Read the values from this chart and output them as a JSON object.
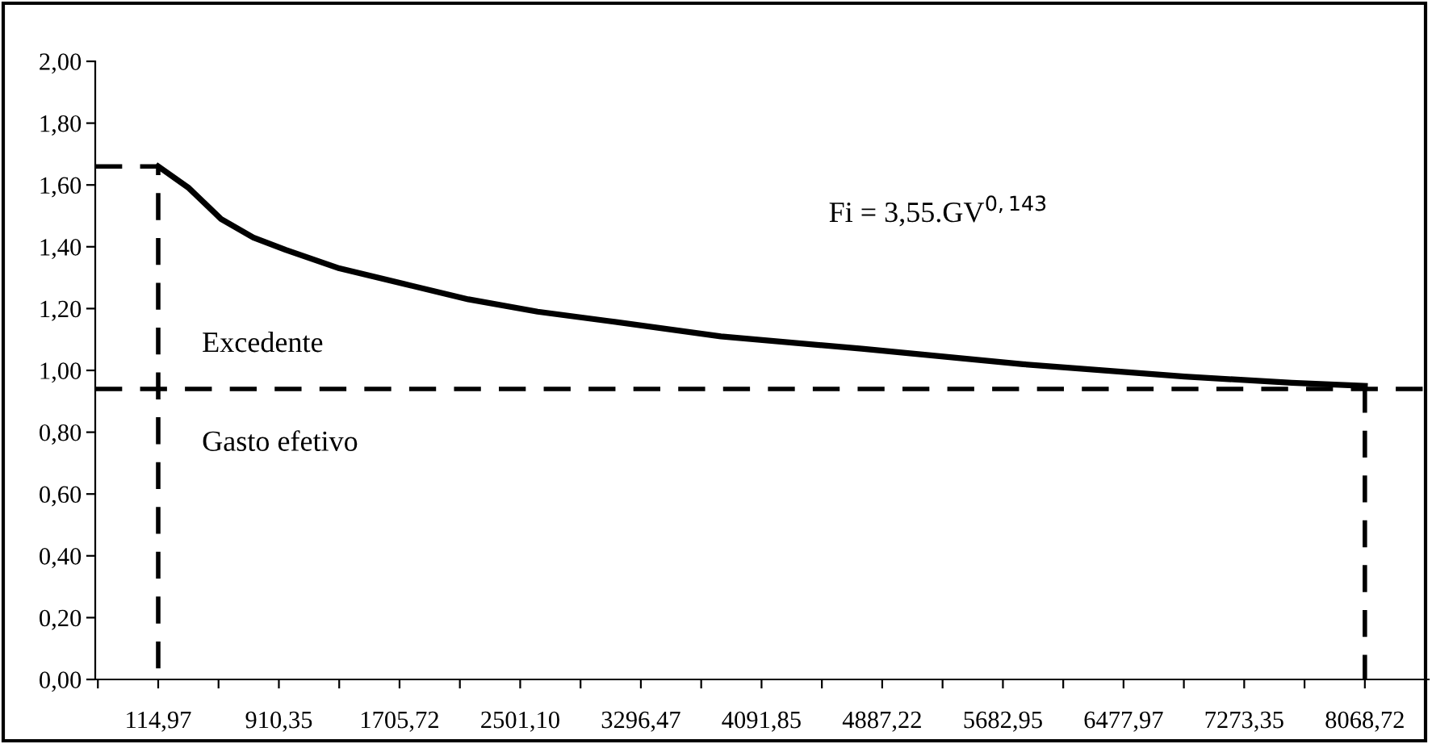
{
  "chart_data": {
    "type": "line",
    "annotations": [
      "Fi = 3,55.GV$^{0,143}$",
      "Excedente",
      "Gasto efetivo"
    ],
    "series": [
      {
        "color": "#000000",
        "line_style": "solid",
        "x": [
          114.97,
          317,
          529,
          742,
          955,
          1309,
          1734,
          2159,
          2616,
          3080,
          3824,
          4753,
          5816,
          6879,
          7588,
          8068.72
        ],
        "values": [
          1.66,
          1.59,
          1.49,
          1.43,
          1.39,
          1.33,
          1.28,
          1.23,
          1.19,
          1.16,
          1.11,
          1.07,
          1.02,
          0.98,
          0.96,
          0.95
        ]
      },
      {
        "color": "#000000",
        "line_style": "dashed",
        "x": [
          -300,
          114.97,
          114.97
        ],
        "values": [
          1.66,
          1.66,
          0
        ]
      },
      {
        "color": "#000000",
        "line_style": "dashed",
        "x": [
          8068.72,
          8068.72
        ],
        "values": [
          0.95,
          0
        ]
      }
    ],
    "ref_lines": [
      {
        "axis": "y",
        "value": 0.94,
        "color": "#000000",
        "line_style": "dashed"
      }
    ],
    "xlim": [
      -300,
      8490
    ],
    "xticks": [
      {
        "value": -282.72,
        "label": null
      },
      {
        "value": 114.97,
        "label": "114,97"
      },
      {
        "value": 512.66,
        "label": null
      },
      {
        "value": 910.35,
        "label": "910,35"
      },
      {
        "value": 1308.04,
        "label": null
      },
      {
        "value": 1705.72,
        "label": "1705,72"
      },
      {
        "value": 2103.41,
        "label": null
      },
      {
        "value": 2501.1,
        "label": "2501,10"
      },
      {
        "value": 2898.79,
        "label": null
      },
      {
        "value": 3296.47,
        "label": "3296,47"
      },
      {
        "value": 3694.16,
        "label": null
      },
      {
        "value": 4091.85,
        "label": "4091,85"
      },
      {
        "value": 4489.54,
        "label": null
      },
      {
        "value": 4887.22,
        "label": "4887,22"
      },
      {
        "value": 5285.09,
        "label": null
      },
      {
        "value": 5682.95,
        "label": "5682,95"
      },
      {
        "value": 6080.46,
        "label": null
      },
      {
        "value": 6477.97,
        "label": "6477,97"
      },
      {
        "value": 6875.66,
        "label": null
      },
      {
        "value": 7273.35,
        "label": "7273,35"
      },
      {
        "value": 7671.04,
        "label": null
      },
      {
        "value": 8068.72,
        "label": "8068,72"
      },
      {
        "value": 8466.41,
        "label": null
      }
    ],
    "ylim": [
      0,
      2
    ],
    "yticks": [
      {
        "value": 0,
        "label": "0,00"
      },
      {
        "value": 0.2,
        "label": "0,20"
      },
      {
        "value": 0.4,
        "label": "0,40"
      },
      {
        "value": 0.6,
        "label": "0,60"
      },
      {
        "value": 0.8,
        "label": "0,80"
      },
      {
        "value": 1.0,
        "label": "1,00"
      },
      {
        "value": 1.2,
        "label": "1,20"
      },
      {
        "value": 1.4,
        "label": "1,40"
      },
      {
        "value": 1.6,
        "label": "1,60"
      },
      {
        "value": 1.8,
        "label": "1,80"
      },
      {
        "value": 2.0,
        "label": "2,00"
      }
    ],
    "grid": false,
    "legend": false
  }
}
